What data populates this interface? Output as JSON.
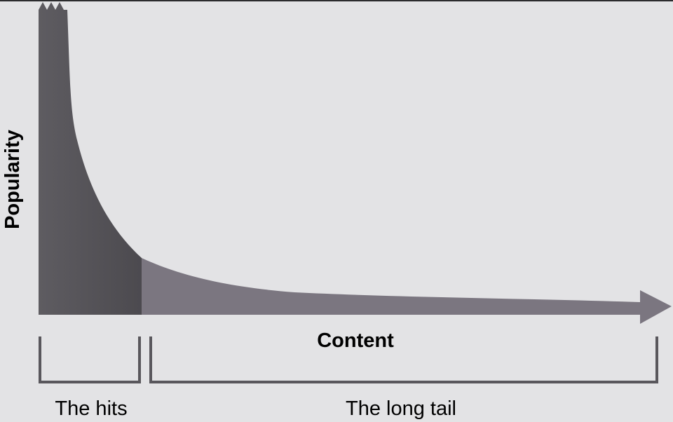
{
  "diagram": {
    "y_axis_label": "Popularity",
    "x_axis_label": "Content",
    "regions": [
      {
        "label": "The hits"
      },
      {
        "label": "The long tail"
      }
    ],
    "colors": {
      "background": "#e3e3e5",
      "hits_fill": "#59575c",
      "tail_fill": "#7b7680",
      "bracket": "#59575c",
      "text": "#000000"
    }
  }
}
